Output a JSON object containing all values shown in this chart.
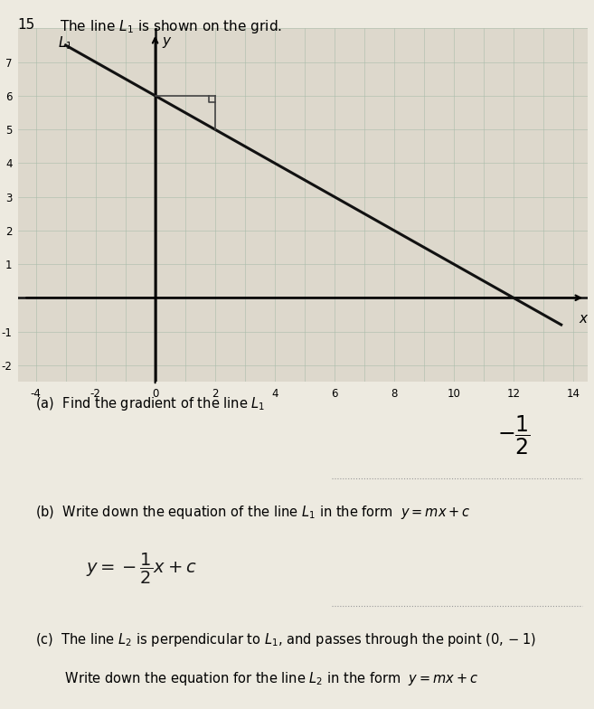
{
  "title_num": "15",
  "title_text": "The line L",
  "x_min": -4,
  "x_max": 15,
  "y_min": -2.5,
  "y_max": 8,
  "x_ticks": [
    -4,
    -2,
    0,
    2,
    4,
    6,
    8,
    10,
    12,
    14
  ],
  "y_ticks": [
    -2,
    -1,
    1,
    2,
    3,
    4,
    5,
    6,
    7
  ],
  "L1_points": [
    [
      0,
      6
    ],
    [
      12,
      0
    ]
  ],
  "background_color": "#ddd8cc",
  "grid_color": "#aabcaa",
  "line_color": "#111111",
  "paper_color": "#edeae0",
  "tri_x1": 0,
  "tri_y1": 6,
  "tri_x2": 2,
  "tri_y2": 6,
  "tri_x3": 2,
  "tri_y3": 5,
  "sq_size": 0.2,
  "question_a": "(a)  Find the gradient of the line L",
  "question_b_prefix": "(b)  Write down the equation of the line L",
  "question_b_suffix": " in the form  y = mx + c",
  "question_c_line1": "(c)  The line L",
  "question_c_line1b": " is perpendicular to L",
  "question_c_line1c": ", and passes through the point (0, −1)",
  "question_c_line2": "       Write down the equation for the line L",
  "question_c_line2b": " in the form  y = mx + c",
  "dotted_line_color": "#999999"
}
